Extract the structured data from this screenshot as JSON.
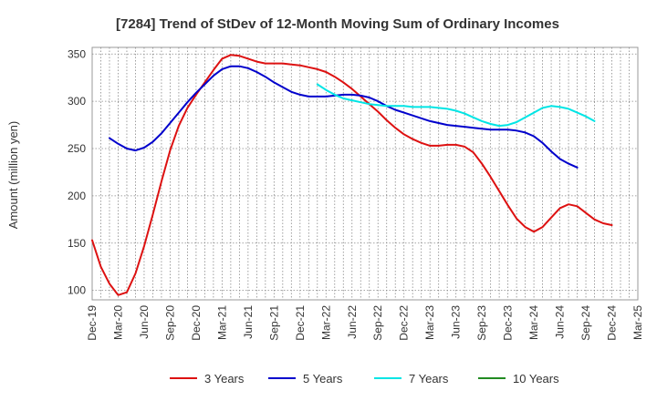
{
  "chart_data": {
    "type": "line",
    "title": "[7284]  Trend of StDev of 12-Month Moving Sum of Ordinary Incomes",
    "xlabel": "",
    "ylabel": "Amount (million yen)",
    "ylim": [
      90,
      357
    ],
    "yticks": [
      100,
      150,
      200,
      250,
      300,
      350
    ],
    "x_tick_labels": [
      "Dec-19",
      "Mar-20",
      "Jun-20",
      "Sep-20",
      "Dec-20",
      "Mar-21",
      "Jun-21",
      "Sep-21",
      "Dec-21",
      "Mar-22",
      "Jun-22",
      "Sep-22",
      "Dec-22",
      "Mar-23",
      "Jun-23",
      "Sep-23",
      "Dec-23",
      "Mar-24",
      "Jun-24",
      "Sep-24",
      "Dec-24",
      "Mar-25"
    ],
    "x_unit": "months since Dec-19",
    "xlim": [
      0,
      63
    ],
    "grid": true,
    "legend_position": "bottom",
    "series": [
      {
        "name": "3 Years",
        "color": "#dd1111",
        "x_start": 0,
        "values": [
          153,
          125,
          107,
          95,
          98,
          118,
          147,
          180,
          215,
          248,
          274,
          293,
          307,
          320,
          333,
          345,
          349,
          348,
          345,
          342,
          340,
          340,
          340,
          339,
          338,
          336,
          334,
          331,
          326,
          320,
          313,
          305,
          297,
          289,
          280,
          272,
          265,
          260,
          256,
          253,
          253,
          254,
          254,
          252,
          246,
          234,
          220,
          205,
          190,
          176,
          167,
          162,
          167,
          177,
          187,
          191,
          189,
          182,
          175,
          171,
          169
        ]
      },
      {
        "name": "5 Years",
        "color": "#0000cc",
        "x_start": 2,
        "values": [
          261,
          255,
          250,
          248,
          251,
          257,
          266,
          277,
          288,
          299,
          309,
          318,
          327,
          334,
          337,
          337,
          335,
          331,
          326,
          320,
          315,
          310,
          307,
          305,
          305,
          305,
          306,
          307,
          307,
          306,
          304,
          300,
          295,
          291,
          288,
          285,
          282,
          279,
          277,
          275,
          274,
          273,
          272,
          271,
          270,
          270,
          270,
          269,
          267,
          263,
          256,
          247,
          239,
          234,
          230
        ]
      },
      {
        "name": "7 Years",
        "color": "#00e5e5",
        "x_start": 26,
        "values": [
          318,
          312,
          307,
          303,
          301,
          299,
          297,
          296,
          295,
          295,
          295,
          294,
          294,
          294,
          293,
          292,
          290,
          287,
          283,
          279,
          276,
          274,
          275,
          278,
          283,
          288,
          293,
          295,
          294,
          292,
          288,
          284,
          279
        ]
      },
      {
        "name": "10 Years",
        "color": "#228b22",
        "x_start": 0,
        "values": []
      }
    ]
  }
}
